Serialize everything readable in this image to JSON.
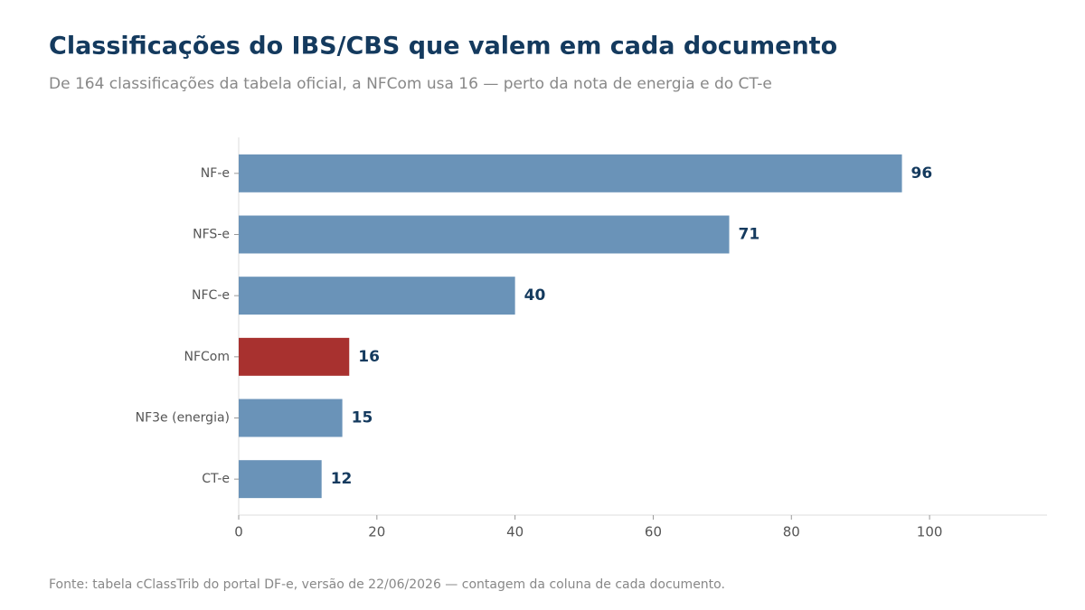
{
  "chart_data": {
    "type": "barh",
    "title": "Classificações do IBS/CBS que valem em cada documento",
    "subtitle": "De 164 classificações da tabela oficial, a NFCom usa 16 — perto da nota de energia e do CT-e",
    "source": "Fonte: tabela cClassTrib do portal DF-e, versão de 22/06/2026 — contagem da coluna de cada documento.",
    "categories": [
      "NF-e",
      "NFS-e",
      "NFC-e",
      "NFCom",
      "NF3e (energia)",
      "CT-e"
    ],
    "values": [
      96,
      71,
      40,
      16,
      15,
      12
    ],
    "colors": [
      "#6a93b8",
      "#6a93b8",
      "#6a93b8",
      "#a8312f",
      "#6a93b8",
      "#6a93b8"
    ],
    "xlim": [
      0,
      117
    ],
    "xticks": [
      0,
      20,
      40,
      60,
      80,
      100
    ],
    "grid": false
  }
}
